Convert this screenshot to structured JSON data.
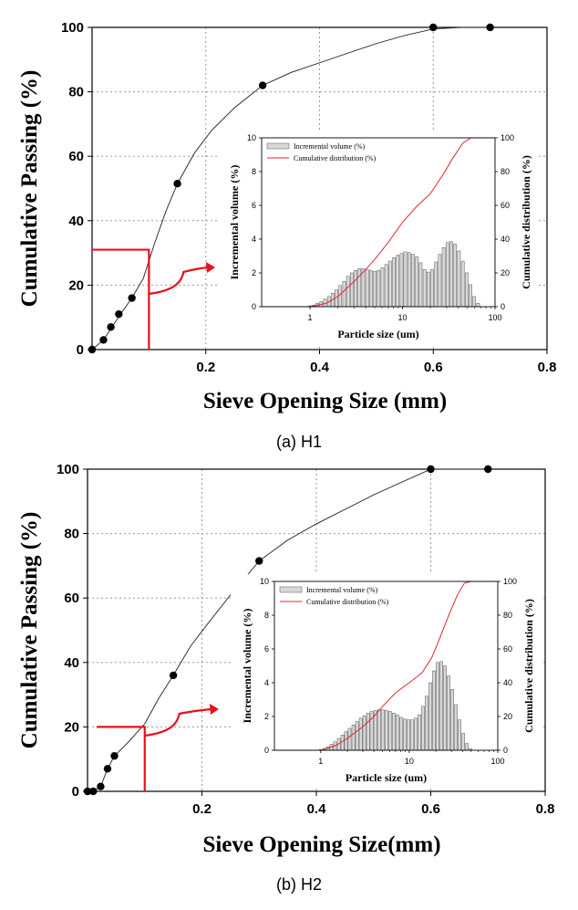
{
  "chart_data": [
    {
      "type": "line",
      "title": "",
      "caption": "(a)  H1",
      "xlabel": "Sieve Opening Size (mm)",
      "ylabel": "Cumulative Passing (%)",
      "xlim": [
        0,
        0.8
      ],
      "ylim": [
        0,
        100
      ],
      "xticks": [
        "0.2",
        "0.4",
        "0.6",
        "0.8"
      ],
      "yticks": [
        "0",
        "20",
        "40",
        "60",
        "80",
        "100"
      ],
      "grid": "dotted",
      "series": [
        {
          "name": "Cumulative Passing",
          "points": [
            [
              0.0,
              0
            ],
            [
              0.02,
              3
            ],
            [
              0.033,
              7
            ],
            [
              0.047,
              11
            ],
            [
              0.07,
              16
            ],
            [
              0.15,
              51.5
            ],
            [
              0.3,
              82
            ],
            [
              0.6,
              100
            ],
            [
              0.7,
              100
            ]
          ],
          "curve": [
            [
              0.0,
              0
            ],
            [
              0.02,
              3
            ],
            [
              0.033,
              6.5
            ],
            [
              0.05,
              11
            ],
            [
              0.07,
              16
            ],
            [
              0.09,
              22
            ],
            [
              0.11,
              33
            ],
            [
              0.13,
              43
            ],
            [
              0.15,
              51.5
            ],
            [
              0.18,
              61
            ],
            [
              0.21,
              68
            ],
            [
              0.25,
              75
            ],
            [
              0.3,
              82
            ],
            [
              0.35,
              86
            ],
            [
              0.4,
              89
            ],
            [
              0.45,
              92
            ],
            [
              0.5,
              95
            ],
            [
              0.55,
              97.5
            ],
            [
              0.6,
              99.5
            ],
            [
              0.65,
              100
            ],
            [
              0.7,
              100
            ]
          ]
        }
      ],
      "annotation": {
        "x": 0.1,
        "y": 31
      },
      "inset": {
        "type": "bar+line",
        "xlabel": "Particle size (um)",
        "ylabel_left": "Incremental volume (%)",
        "ylabel_right": "Cumulative distribution (%)",
        "xscale": "log",
        "xlim": [
          0.3,
          100
        ],
        "ylim_left": [
          0,
          10
        ],
        "ylim_right": [
          0,
          100
        ],
        "xticks": [
          "1",
          "10",
          "100"
        ],
        "yticks_left": [
          "0",
          "2",
          "4",
          "6",
          "8",
          "10"
        ],
        "yticks_right": [
          "0",
          "20",
          "40",
          "60",
          "80",
          "100"
        ],
        "legend": [
          "Incremental volume (%)",
          "Cumulative distribution (%)"
        ],
        "legend_position": "top-left",
        "bars": {
          "x": [
            1.0,
            1.1,
            1.2,
            1.32,
            1.45,
            1.6,
            1.76,
            1.93,
            2.12,
            2.34,
            2.57,
            2.83,
            3.11,
            3.42,
            3.76,
            4.14,
            4.55,
            5.01,
            5.51,
            6.06,
            6.67,
            7.33,
            8.07,
            8.87,
            9.76,
            10.7,
            11.8,
            13.0,
            14.3,
            15.7,
            17.3,
            19.0,
            20.9,
            23.0,
            25.3,
            27.8,
            30.6,
            33.7,
            37.0,
            40.7,
            44.8,
            49.3,
            54.2,
            59.6,
            65.6
          ],
          "values": [
            0.05,
            0.1,
            0.2,
            0.3,
            0.45,
            0.6,
            0.8,
            1.0,
            1.25,
            1.5,
            1.8,
            2.0,
            2.15,
            2.25,
            2.25,
            2.2,
            2.15,
            2.1,
            2.15,
            2.3,
            2.5,
            2.7,
            2.9,
            3.05,
            3.15,
            3.25,
            3.2,
            3.1,
            2.95,
            2.6,
            2.2,
            2.05,
            2.2,
            2.65,
            3.1,
            3.5,
            3.8,
            3.85,
            3.7,
            3.3,
            2.7,
            2.0,
            1.3,
            0.6,
            0.2
          ]
        },
        "cumulative": {
          "x": [
            0.3,
            1.0,
            1.5,
            2.0,
            3.0,
            4.0,
            5.0,
            7.0,
            10.0,
            14.0,
            20.0,
            28.0,
            35.0,
            45.0,
            55.0,
            60.0,
            100.0
          ],
          "y": [
            0,
            0,
            2,
            6,
            15,
            22,
            28,
            38,
            50,
            59,
            67,
            79,
            88,
            97,
            100,
            100,
            100
          ]
        }
      }
    },
    {
      "type": "line",
      "title": "",
      "caption": "(b)  H2",
      "xlabel": "Sieve Opening Size(mm)",
      "ylabel": "Cumulative Passing (%)",
      "xlim": [
        0,
        0.8
      ],
      "ylim": [
        0,
        100
      ],
      "xticks": [
        "0.2",
        "0.4",
        "0.6",
        "0.8"
      ],
      "yticks": [
        "0",
        "20",
        "40",
        "60",
        "80",
        "100"
      ],
      "grid": "dotted",
      "series": [
        {
          "name": "Cumulative Passing",
          "points": [
            [
              0.0,
              0
            ],
            [
              0.01,
              0
            ],
            [
              0.023,
              1.5
            ],
            [
              0.035,
              7
            ],
            [
              0.047,
              11
            ],
            [
              0.15,
              36
            ],
            [
              0.3,
              71.5
            ],
            [
              0.6,
              100
            ],
            [
              0.7,
              100
            ]
          ],
          "curve": [
            [
              0.0,
              0
            ],
            [
              0.01,
              0
            ],
            [
              0.023,
              1.5
            ],
            [
              0.035,
              7
            ],
            [
              0.047,
              11
            ],
            [
              0.07,
              15
            ],
            [
              0.1,
              21
            ],
            [
              0.125,
              29
            ],
            [
              0.15,
              36
            ],
            [
              0.18,
              45
            ],
            [
              0.21,
              52
            ],
            [
              0.25,
              61
            ],
            [
              0.3,
              71.5
            ],
            [
              0.35,
              78
            ],
            [
              0.4,
              83
            ],
            [
              0.45,
              87.5
            ],
            [
              0.5,
              92
            ],
            [
              0.55,
              96
            ],
            [
              0.6,
              100
            ],
            [
              0.7,
              100
            ]
          ]
        }
      ],
      "annotation": {
        "x": 0.1,
        "y": 20
      },
      "inset": {
        "type": "bar+line",
        "xlabel": "Particle size (um)",
        "ylabel_left": "Incremental volume (%)",
        "ylabel_right": "Cumulative distribution (%)",
        "xscale": "log",
        "xlim": [
          0.3,
          100
        ],
        "ylim_left": [
          0,
          10
        ],
        "ylim_right": [
          0,
          100
        ],
        "xticks": [
          "1",
          "10",
          "100"
        ],
        "yticks_left": [
          "0",
          "2",
          "4",
          "6",
          "8",
          "10"
        ],
        "yticks_right": [
          "0",
          "20",
          "40",
          "60",
          "80",
          "100"
        ],
        "legend": [
          "Incremental volume (%)",
          "Cumulative distribution (%)"
        ],
        "legend_position": "top-left",
        "bars": {
          "x": [
            1.0,
            1.1,
            1.2,
            1.32,
            1.45,
            1.6,
            1.76,
            1.93,
            2.12,
            2.34,
            2.57,
            2.83,
            3.11,
            3.42,
            3.76,
            4.14,
            4.55,
            5.01,
            5.51,
            6.06,
            6.67,
            7.33,
            8.07,
            8.87,
            9.76,
            10.7,
            11.8,
            13.0,
            14.3,
            15.7,
            17.3,
            19.0,
            20.9,
            23.0,
            25.3,
            27.8,
            30.6,
            33.7,
            37.0,
            40.7,
            44.8,
            49.3
          ],
          "values": [
            0.05,
            0.1,
            0.2,
            0.35,
            0.5,
            0.7,
            0.9,
            1.1,
            1.3,
            1.5,
            1.7,
            1.9,
            2.05,
            2.2,
            2.3,
            2.35,
            2.4,
            2.4,
            2.35,
            2.3,
            2.2,
            2.1,
            1.95,
            1.85,
            1.8,
            1.8,
            1.9,
            2.1,
            2.6,
            3.2,
            4.0,
            4.7,
            5.2,
            5.25,
            5.0,
            4.4,
            3.6,
            2.7,
            1.8,
            1.0,
            0.4,
            0.1
          ]
        },
        "cumulative": {
          "x": [
            0.3,
            1.0,
            1.5,
            2.0,
            3.0,
            4.0,
            5.0,
            7.0,
            10.0,
            14.0,
            18.0,
            22.0,
            28.0,
            35.0,
            42.0,
            50.0,
            100.0
          ],
          "y": [
            0,
            0,
            3,
            7,
            14,
            20,
            26,
            34,
            40,
            46,
            55,
            66,
            80,
            92,
            99,
            100,
            100
          ]
        }
      }
    }
  ]
}
